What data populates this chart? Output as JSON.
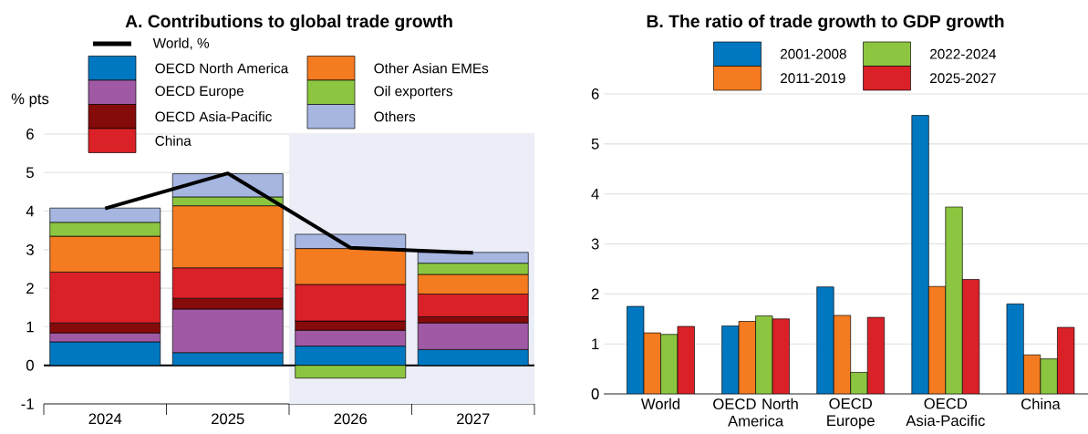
{
  "chart_data": [
    {
      "type": "bar",
      "stacked": true,
      "title": "A. Contributions to global trade growth",
      "ylabel": "% pts",
      "categories": [
        "2024",
        "2025",
        "2026",
        "2027"
      ],
      "series": [
        {
          "name": "World, %",
          "type": "line",
          "color": "#000000",
          "values": [
            4.07,
            4.98,
            3.05,
            2.92
          ]
        },
        {
          "name": "OECD North America",
          "color": "#0078c1",
          "values": [
            0.61,
            0.33,
            0.5,
            0.41
          ]
        },
        {
          "name": "OECD Europe",
          "color": "#a05aa5",
          "values": [
            0.23,
            1.13,
            0.41,
            0.69
          ]
        },
        {
          "name": "OECD Asia-Pacific",
          "color": "#850a0a",
          "values": [
            0.26,
            0.28,
            0.24,
            0.16
          ]
        },
        {
          "name": "China",
          "color": "#da2128",
          "values": [
            1.32,
            0.79,
            0.95,
            0.59
          ]
        },
        {
          "name": "Other Asian EMEs",
          "color": "#f47b20",
          "values": [
            0.93,
            1.61,
            0.93,
            0.51
          ]
        },
        {
          "name": "Oil exporters",
          "color": "#8cc641",
          "values": [
            0.36,
            0.23,
            -0.33,
            0.29
          ]
        },
        {
          "name": "Others",
          "color": "#a6b6e1",
          "values": [
            0.37,
            0.6,
            0.37,
            0.28
          ]
        }
      ],
      "ylim": [
        -1,
        6
      ],
      "yticks": [
        -1,
        0,
        1,
        2,
        3,
        4,
        5,
        6
      ],
      "grid": "y",
      "legend": "top left",
      "bands": [
        {
          "axis": "x",
          "from": "2026",
          "to": "2027",
          "color": "#eceef7"
        }
      ]
    },
    {
      "type": "bar",
      "title": "B. The ratio of trade growth to GDP growth",
      "categories": [
        "World",
        "OECD North America",
        "OECD Europe",
        "OECD Asia-Pacific",
        "China"
      ],
      "series": [
        {
          "name": "2001-2008",
          "color": "#0078c1",
          "values": [
            1.75,
            1.36,
            2.14,
            5.57,
            1.8
          ]
        },
        {
          "name": "2011-2019",
          "color": "#f47b20",
          "values": [
            1.22,
            1.45,
            1.57,
            2.15,
            0.78
          ]
        },
        {
          "name": "2022-2024",
          "color": "#8cc641",
          "values": [
            1.19,
            1.56,
            0.43,
            3.74,
            0.7
          ]
        },
        {
          "name": "2025-2027",
          "color": "#da2128",
          "values": [
            1.35,
            1.5,
            1.53,
            2.29,
            1.33
          ]
        }
      ],
      "ylim": [
        0,
        6
      ],
      "yticks": [
        0,
        1,
        2,
        3,
        4,
        5,
        6
      ],
      "grid": "y",
      "legend": "top"
    }
  ]
}
